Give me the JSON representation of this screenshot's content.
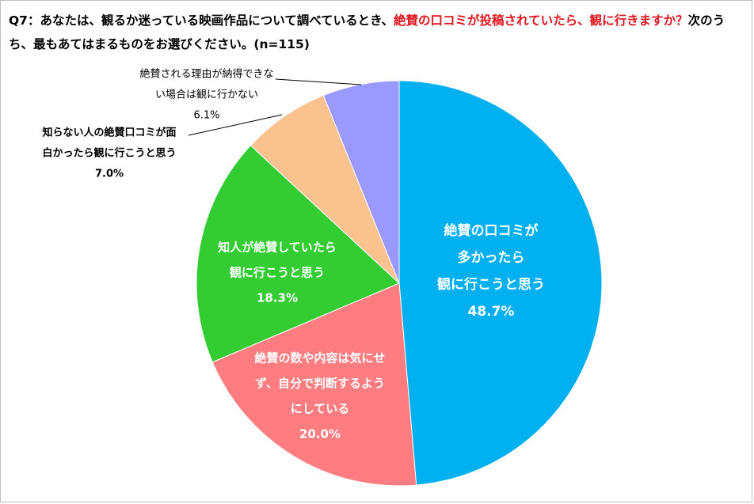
{
  "title": {
    "prefix": "Q7：あなたは、観るか迷っている映画作品について調べているとき、",
    "highlight": "絶賛の口コミが投稿されていたら、観に行きますか？",
    "suffix": "次のうち、最もあてはまるものをお選びください。(n=115)"
  },
  "colors": {
    "title_highlight": "#e0141e"
  },
  "chart_data": {
    "type": "pie",
    "start_angle_deg": 0,
    "direction": "clockwise",
    "unit": "%",
    "slices": [
      {
        "label_lines": [
          "絶賛の口コミが",
          "多かったら",
          "観に行こうと思う"
        ],
        "value": 48.7,
        "value_text": "48.7%",
        "color": "#00b0f0",
        "label_color": "#ffffff",
        "label_position": "inside"
      },
      {
        "label_lines": [
          "絶賛の数や内容は気にせ",
          "ず、自分で判断するよう",
          "にしている"
        ],
        "value": 20.0,
        "value_text": "20.0%",
        "color": "#ff7c80",
        "label_color": "#ffffff",
        "label_position": "inside"
      },
      {
        "label_lines": [
          "知人が絶賛していたら",
          "観に行こうと思う"
        ],
        "value": 18.3,
        "value_text": "18.3%",
        "color": "#33cc33",
        "label_color": "#ffffff",
        "label_position": "inside"
      },
      {
        "label_lines": [
          "知らない人の絶賛口コミが面",
          "白かったら観に行こうと思う"
        ],
        "value": 7.0,
        "value_text": "7.0%",
        "color": "#f9c28f",
        "label_color": "#000000",
        "label_position": "outside"
      },
      {
        "label_lines": [
          "絶賛される理由が納得できな",
          "い場合は観に行かない"
        ],
        "value": 6.1,
        "value_text": "6.1%",
        "color": "#9999ff",
        "label_color": "#000000",
        "label_position": "outside"
      }
    ]
  }
}
